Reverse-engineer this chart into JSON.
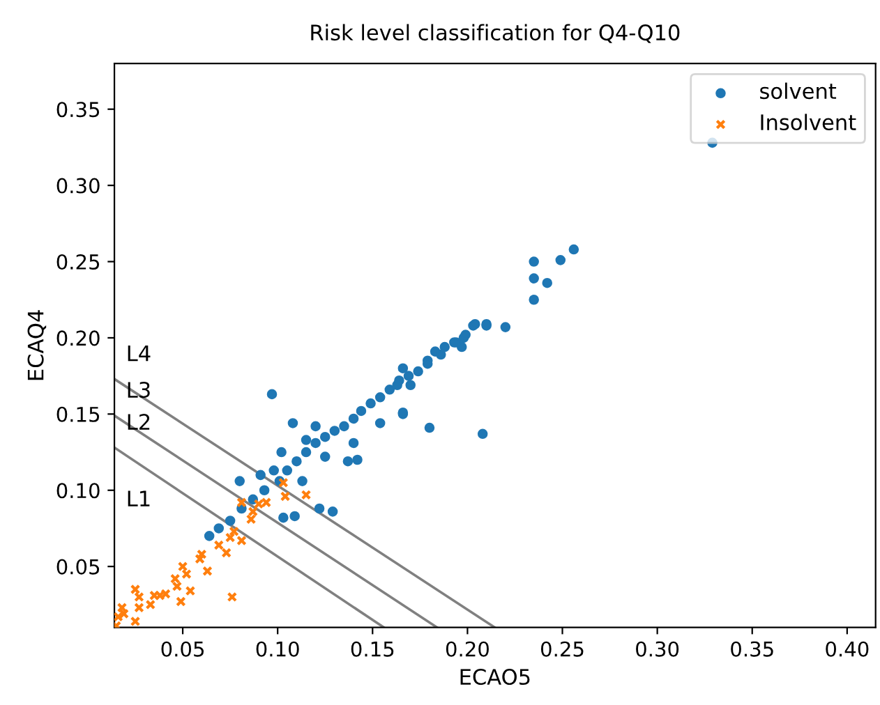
{
  "chart_data": {
    "type": "scatter",
    "title": "Risk level classification for Q4-Q10",
    "xlabel": "ECAO5",
    "ylabel": "ECAQ4",
    "xlim": [
      0.014,
      0.415
    ],
    "ylim": [
      0.01,
      0.38
    ],
    "xticks": [
      {
        "value": 0.05,
        "label": "0.05"
      },
      {
        "value": 0.1,
        "label": "0.10"
      },
      {
        "value": 0.15,
        "label": "0.15"
      },
      {
        "value": 0.2,
        "label": "0.20"
      },
      {
        "value": 0.25,
        "label": "0.25"
      },
      {
        "value": 0.3,
        "label": "0.30"
      },
      {
        "value": 0.35,
        "label": "0.35"
      },
      {
        "value": 0.4,
        "label": "0.40"
      }
    ],
    "yticks": [
      {
        "value": 0.05,
        "label": "0.05"
      },
      {
        "value": 0.1,
        "label": "0.10"
      },
      {
        "value": 0.15,
        "label": "0.15"
      },
      {
        "value": 0.2,
        "label": "0.20"
      },
      {
        "value": 0.25,
        "label": "0.25"
      },
      {
        "value": 0.3,
        "label": "0.30"
      },
      {
        "value": 0.35,
        "label": "0.35"
      }
    ],
    "grid": false,
    "legend": "top right",
    "series": [
      {
        "name": "solvent",
        "color": "#1f77b4",
        "marker": "circle",
        "x": [
          0.064,
          0.069,
          0.075,
          0.081,
          0.087,
          0.093,
          0.101,
          0.105,
          0.11,
          0.115,
          0.12,
          0.125,
          0.13,
          0.135,
          0.14,
          0.144,
          0.149,
          0.154,
          0.159,
          0.164,
          0.169,
          0.174,
          0.179,
          0.183,
          0.188,
          0.193,
          0.198,
          0.203,
          0.21,
          0.097,
          0.108,
          0.115,
          0.102,
          0.08,
          0.122,
          0.129,
          0.103,
          0.109,
          0.166,
          0.12,
          0.142,
          0.137,
          0.098,
          0.113,
          0.091,
          0.125,
          0.14,
          0.154,
          0.235,
          0.235,
          0.242,
          0.235,
          0.204,
          0.21,
          0.22,
          0.194,
          0.199,
          0.197,
          0.186,
          0.179,
          0.166,
          0.166,
          0.18,
          0.208,
          0.17,
          0.163,
          0.329,
          0.256,
          0.249
        ],
        "values": [
          0.07,
          0.075,
          0.08,
          0.088,
          0.094,
          0.1,
          0.106,
          0.113,
          0.119,
          0.125,
          0.131,
          0.135,
          0.139,
          0.142,
          0.147,
          0.152,
          0.157,
          0.161,
          0.166,
          0.172,
          0.175,
          0.178,
          0.185,
          0.191,
          0.194,
          0.197,
          0.2,
          0.208,
          0.208,
          0.163,
          0.144,
          0.133,
          0.125,
          0.106,
          0.088,
          0.086,
          0.082,
          0.083,
          0.15,
          0.142,
          0.12,
          0.119,
          0.113,
          0.106,
          0.11,
          0.122,
          0.131,
          0.144,
          0.25,
          0.239,
          0.236,
          0.225,
          0.209,
          0.209,
          0.207,
          0.197,
          0.202,
          0.194,
          0.189,
          0.183,
          0.18,
          0.151,
          0.141,
          0.137,
          0.169,
          0.169,
          0.328,
          0.258,
          0.251
        ]
      },
      {
        "name": "Insolvent",
        "color": "#ff7f0e",
        "marker": "cross",
        "x": [
          0.018,
          0.019,
          0.016,
          0.025,
          0.025,
          0.027,
          0.027,
          0.033,
          0.035,
          0.038,
          0.041,
          0.046,
          0.047,
          0.05,
          0.052,
          0.054,
          0.049,
          0.059,
          0.06,
          0.063,
          0.069,
          0.073,
          0.075,
          0.077,
          0.081,
          0.076,
          0.081,
          0.086,
          0.087,
          0.09,
          0.094,
          0.103,
          0.104,
          0.115,
          0.015
        ],
        "values": [
          0.023,
          0.019,
          0.017,
          0.014,
          0.035,
          0.03,
          0.023,
          0.025,
          0.031,
          0.031,
          0.032,
          0.042,
          0.037,
          0.05,
          0.045,
          0.034,
          0.027,
          0.055,
          0.058,
          0.047,
          0.064,
          0.059,
          0.069,
          0.073,
          0.067,
          0.03,
          0.092,
          0.081,
          0.086,
          0.091,
          0.092,
          0.105,
          0.096,
          0.097,
          0.011
        ]
      },
      {
        "type": "line",
        "color": "#808080",
        "x": [
          0.014,
          0.156
        ],
        "values": [
          0.128,
          0.01
        ]
      },
      {
        "type": "line",
        "color": "#808080",
        "x": [
          0.014,
          0.184
        ],
        "values": [
          0.149,
          0.01
        ]
      },
      {
        "type": "line",
        "color": "#808080",
        "x": [
          0.014,
          0.2144
        ],
        "values": [
          0.173,
          0.01
        ]
      }
    ],
    "annotations": [
      "L4",
      "L3",
      "L2",
      "L1"
    ]
  }
}
